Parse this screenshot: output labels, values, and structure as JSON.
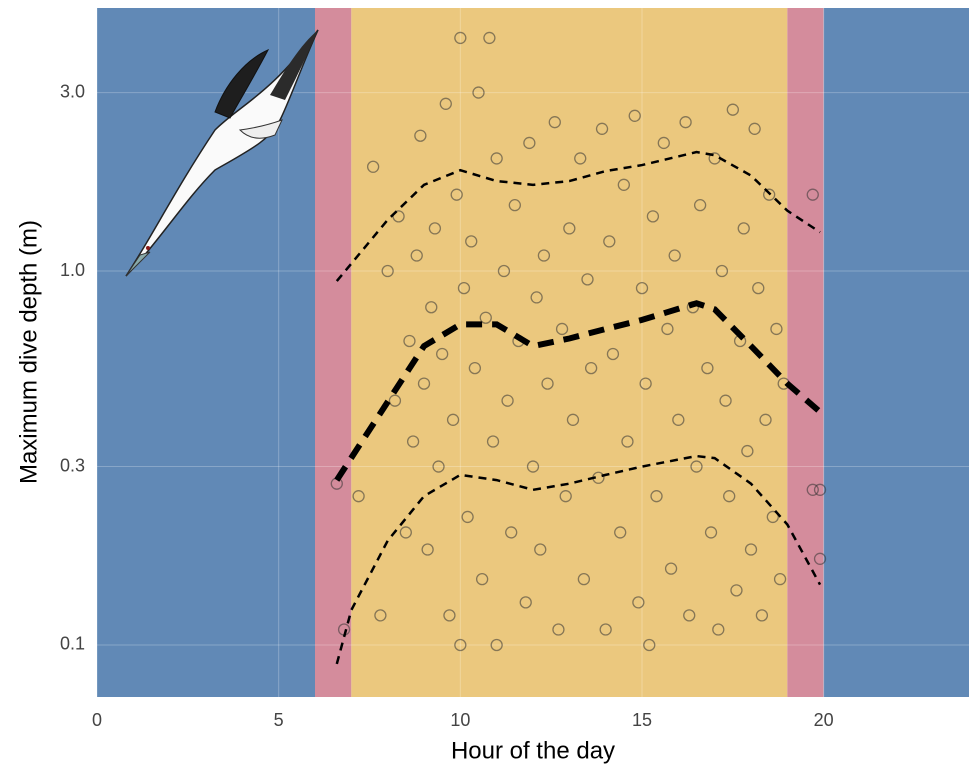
{
  "chart_data": {
    "type": "scatter",
    "x_label": "Hour of the day",
    "y_label": "Maximum dive depth (m)",
    "xlim": [
      0,
      24
    ],
    "ylim": [
      0.0726,
      5.05
    ],
    "log_y": true,
    "grid": true,
    "xticks": [
      0,
      5,
      10,
      15,
      20
    ],
    "yticks": [
      0.1,
      0.3,
      {
        "value": 1,
        "label": "1.0"
      },
      {
        "value": 3,
        "label": "3.0"
      }
    ],
    "bands": [
      {
        "start": 0,
        "end": 6,
        "color": "#6189b6"
      },
      {
        "start": 6,
        "end": 7,
        "color": "#d48c9c"
      },
      {
        "start": 7,
        "end": 19,
        "color": "#ebc87e"
      },
      {
        "start": 19,
        "end": 20,
        "color": "#d48c9c"
      },
      {
        "start": 20,
        "end": 24,
        "color": "#6189b6"
      }
    ],
    "point_color": "#333333",
    "x": [
      7.2,
      7.6,
      7.8,
      8.0,
      8.2,
      8.3,
      8.5,
      8.6,
      8.7,
      8.8,
      8.9,
      9.0,
      9.1,
      9.2,
      9.3,
      9.4,
      9.5,
      9.6,
      9.7,
      9.8,
      9.9,
      10.0,
      10.0,
      10.1,
      10.2,
      10.3,
      10.4,
      10.5,
      10.6,
      10.7,
      10.8,
      10.9,
      11.0,
      11.0,
      11.2,
      11.3,
      11.4,
      11.5,
      11.6,
      11.8,
      11.9,
      12.0,
      12.1,
      12.2,
      12.3,
      12.4,
      12.6,
      12.7,
      12.8,
      12.9,
      13.0,
      13.1,
      13.3,
      13.4,
      13.5,
      13.6,
      13.8,
      13.9,
      14.0,
      14.1,
      14.2,
      14.4,
      14.5,
      14.6,
      14.8,
      14.9,
      15.0,
      15.1,
      15.2,
      15.3,
      15.4,
      15.6,
      15.7,
      15.8,
      15.9,
      16.0,
      16.2,
      16.3,
      16.4,
      16.5,
      16.6,
      16.8,
      16.9,
      17.0,
      17.1,
      17.2,
      17.3,
      17.4,
      17.5,
      17.6,
      17.7,
      17.8,
      17.9,
      18.0,
      18.1,
      18.2,
      18.3,
      18.4,
      18.5,
      18.6,
      18.7,
      18.8,
      18.9,
      6.6,
      6.8,
      19.7,
      19.7,
      19.9,
      19.9
    ],
    "values": [
      0.25,
      1.9,
      0.12,
      1.0,
      0.45,
      1.4,
      0.2,
      0.65,
      0.35,
      1.1,
      2.3,
      0.5,
      0.18,
      0.8,
      1.3,
      0.3,
      0.6,
      2.8,
      0.12,
      0.4,
      1.6,
      4.2,
      0.1,
      0.9,
      0.22,
      1.2,
      0.55,
      3.0,
      0.15,
      0.75,
      4.2,
      0.35,
      2.0,
      0.1,
      1.0,
      0.45,
      0.2,
      1.5,
      0.65,
      0.13,
      2.2,
      0.3,
      0.85,
      0.18,
      1.1,
      0.5,
      2.5,
      0.11,
      0.7,
      0.25,
      1.3,
      0.4,
      2.0,
      0.15,
      0.95,
      0.55,
      0.28,
      2.4,
      0.11,
      1.2,
      0.6,
      0.2,
      1.7,
      0.35,
      2.6,
      0.13,
      0.9,
      0.5,
      0.1,
      1.4,
      0.25,
      2.2,
      0.7,
      0.16,
      1.1,
      0.4,
      2.5,
      0.12,
      0.8,
      0.3,
      1.5,
      0.55,
      0.2,
      2.0,
      0.11,
      1.0,
      0.45,
      0.25,
      2.7,
      0.14,
      0.65,
      1.3,
      0.33,
      0.18,
      2.4,
      0.9,
      0.12,
      0.4,
      1.6,
      0.22,
      0.7,
      0.15,
      0.5,
      0.27,
      0.11,
      1.6,
      0.26,
      0.26,
      0.17
    ],
    "quantile_lines": [
      {
        "width": 2.5,
        "x": [
          6.6,
          8,
          9,
          10,
          11,
          12,
          13,
          14,
          15,
          16.5,
          17,
          18,
          19,
          19.9
        ],
        "values": [
          0.94,
          1.37,
          1.7,
          1.86,
          1.74,
          1.7,
          1.74,
          1.85,
          1.92,
          2.08,
          2.04,
          1.8,
          1.45,
          1.27
        ]
      },
      {
        "width": 6,
        "x": [
          6.6,
          9,
          10,
          11,
          12,
          13,
          14,
          15,
          16.5,
          17,
          18,
          19,
          19.9
        ],
        "values": [
          0.276,
          0.63,
          0.72,
          0.72,
          0.63,
          0.66,
          0.7,
          0.74,
          0.82,
          0.79,
          0.63,
          0.5,
          0.42
        ]
      },
      {
        "width": 2.5,
        "x": [
          6.6,
          7,
          8,
          9,
          10,
          11,
          12,
          13,
          14,
          15,
          16.5,
          17,
          18,
          19,
          19.9
        ],
        "values": [
          0.089,
          0.124,
          0.19,
          0.25,
          0.285,
          0.276,
          0.26,
          0.27,
          0.285,
          0.3,
          0.32,
          0.316,
          0.27,
          0.21,
          0.145
        ]
      }
    ]
  }
}
